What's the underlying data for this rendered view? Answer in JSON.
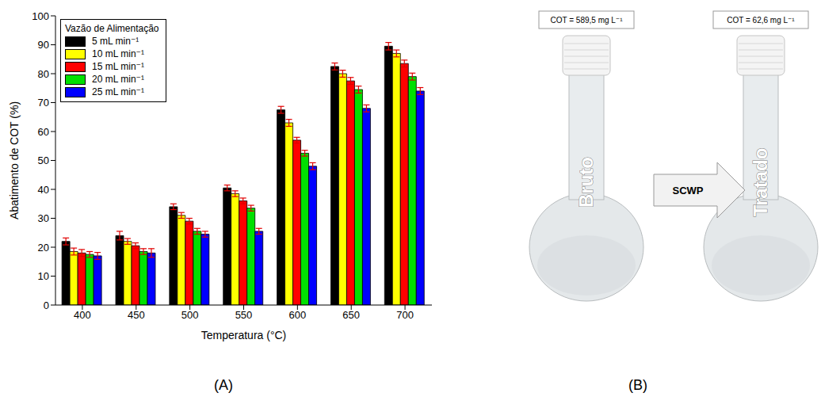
{
  "chart_data": {
    "type": "bar",
    "x_label": "Temperatura (°C)",
    "y_label": "Abatimento de COT (%)",
    "legend_title": "Vazão de Alimentação",
    "legend": "top-left",
    "grid": false,
    "categories": [
      400,
      450,
      500,
      550,
      600,
      650,
      700
    ],
    "ylim": [
      0,
      100
    ],
    "yticks": [
      0,
      10,
      20,
      30,
      40,
      50,
      60,
      70,
      80,
      90,
      100
    ],
    "series": [
      {
        "name": "5 mL min⁻¹",
        "color": "#000000",
        "values": [
          22,
          24,
          34,
          40.5,
          67.5,
          82.5,
          89.5
        ],
        "errors": [
          1.2,
          1.5,
          1,
          1,
          1.2,
          1.2,
          1.3
        ]
      },
      {
        "name": "10 mL min⁻¹",
        "color": "#ffff00",
        "values": [
          18.5,
          22,
          31,
          38.5,
          63,
          80,
          87
        ],
        "errors": [
          1.2,
          1,
          1,
          1,
          1.2,
          1.2,
          1.2
        ]
      },
      {
        "name": "15 mL min⁻¹",
        "color": "#ff0000",
        "values": [
          18,
          20.5,
          29,
          36,
          57,
          77.5,
          83.5
        ],
        "errors": [
          1.2,
          1,
          1,
          1,
          1,
          1.2,
          1.2
        ]
      },
      {
        "name": "20 mL min⁻¹",
        "color": "#00e000",
        "values": [
          17.5,
          18.5,
          25.5,
          33.5,
          52.5,
          74.5,
          79
        ],
        "errors": [
          1,
          1,
          1,
          1,
          1,
          1.2,
          1.2
        ]
      },
      {
        "name": "25 mL min⁻¹",
        "color": "#0000ff",
        "values": [
          17,
          18,
          24.5,
          25.5,
          48,
          68,
          74
        ],
        "errors": [
          1.2,
          1.5,
          1,
          1,
          1.2,
          1.2,
          1.2
        ]
      }
    ]
  },
  "panel_labels": [
    "(A)",
    "(B)"
  ],
  "image_b": {
    "before": {
      "cot": "COT = 589,5 mg L⁻¹",
      "label": "Bruto"
    },
    "process": "SCWP",
    "after": {
      "cot": "COT = 62,6 mg L⁻¹",
      "label": "Tratado"
    }
  }
}
